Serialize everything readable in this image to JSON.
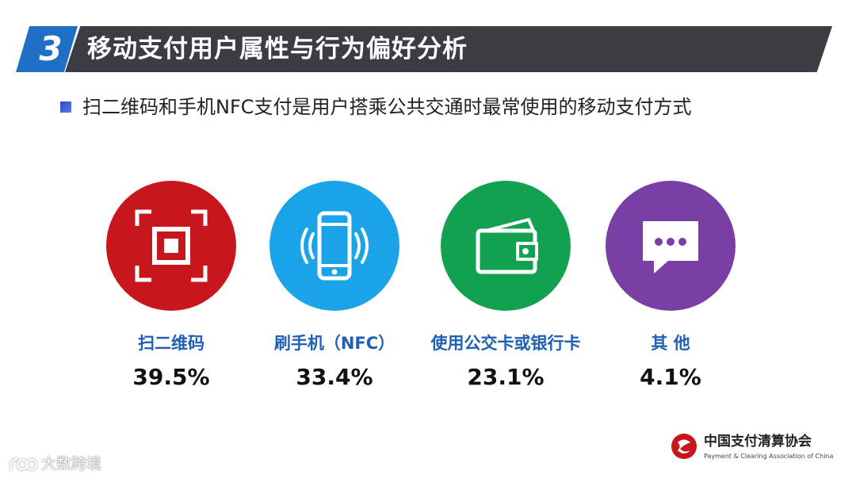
{
  "header": {
    "section_number": "3",
    "title": "移动支付用户属性与行为偏好分析"
  },
  "subtitle": "扫二维码和手机NFC支付是用户搭乘公共交通时最常使用的移动支付方式",
  "methods": [
    {
      "label": "扫二维码",
      "percent": "39.5%",
      "color": "#c8161d",
      "icon": "qr-scan-icon"
    },
    {
      "label": "刷手机（NFC）",
      "percent": "33.4%",
      "color": "#1aa3e8",
      "icon": "nfc-phone-icon"
    },
    {
      "label": "使用公交卡或银行卡",
      "percent": "23.1%",
      "color": "#12a150",
      "icon": "wallet-card-icon"
    },
    {
      "label": "其 他",
      "percent": "4.1%",
      "color": "#7a3fa5",
      "icon": "chat-bubble-icon"
    }
  ],
  "footer": {
    "org_name_cn": "中国支付清算协会",
    "org_name_en": "Payment & Clearing Association of China",
    "watermark": "大数跨境"
  }
}
